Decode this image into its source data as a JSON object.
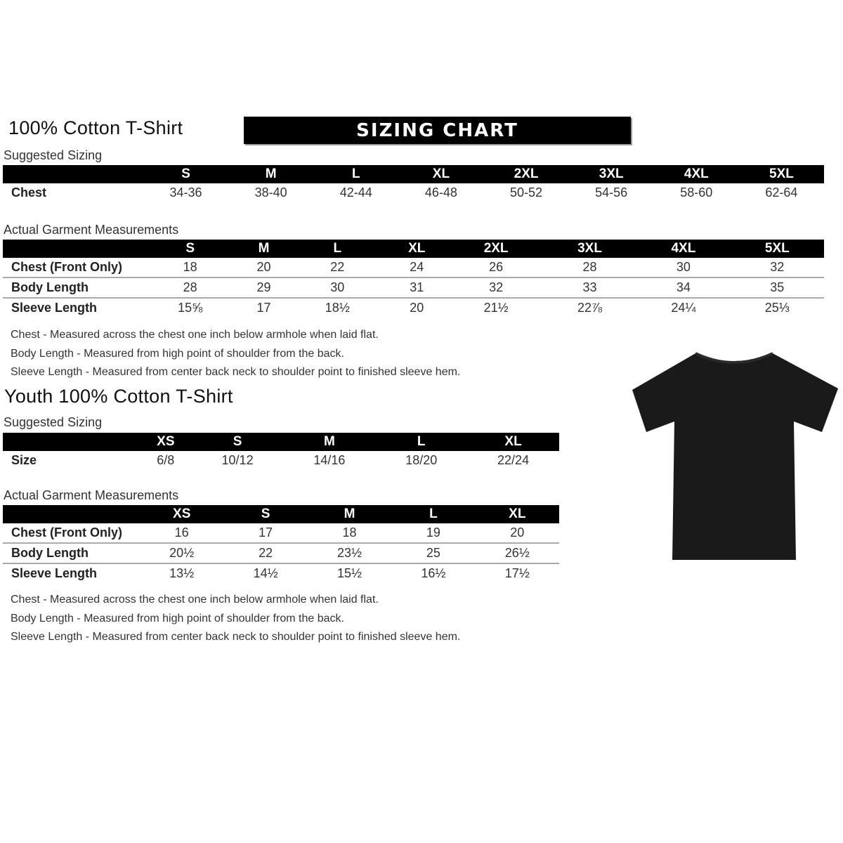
{
  "adult": {
    "title": "100% Cotton T-Shirt",
    "banner": "SIZING CHART",
    "suggested_label": "Suggested Sizing",
    "sizes": [
      "S",
      "M",
      "L",
      "XL",
      "2XL",
      "3XL",
      "4XL",
      "5XL"
    ],
    "suggested_rows": [
      {
        "label": "Chest",
        "values": [
          "34-36",
          "38-40",
          "42-44",
          "46-48",
          "50-52",
          "54-56",
          "58-60",
          "62-64"
        ]
      }
    ],
    "actual_label": "Actual Garment Measurements",
    "actual_rows": [
      {
        "label": "Chest (Front Only)",
        "values": [
          "18",
          "20",
          "22",
          "24",
          "26",
          "28",
          "30",
          "32"
        ]
      },
      {
        "label": "Body Length",
        "values": [
          "28",
          "29",
          "30",
          "31",
          "32",
          "33",
          "34",
          "35"
        ]
      },
      {
        "label": "Sleeve Length",
        "values": [
          "15⅝",
          "17",
          "18½",
          "20",
          "21½",
          "22⅞",
          "24¼",
          "25⅓"
        ]
      }
    ],
    "notes": [
      "Chest - Measured across the chest one inch below armhole when laid flat.",
      "Body Length - Measured from high point of shoulder from the back.",
      "Sleeve Length - Measured from center back neck to shoulder point to finished sleeve hem."
    ]
  },
  "youth": {
    "title": "Youth 100% Cotton T-Shirt",
    "suggested_label": "Suggested Sizing",
    "sizes": [
      "XS",
      "S",
      "M",
      "L",
      "XL"
    ],
    "suggested_rows": [
      {
        "label": "Size",
        "values": [
          "6/8",
          "10/12",
          "14/16",
          "18/20",
          "22/24"
        ]
      }
    ],
    "actual_label": "Actual Garment Measurements",
    "actual_rows": [
      {
        "label": "Chest (Front Only)",
        "values": [
          "16",
          "17",
          "18",
          "19",
          "20"
        ]
      },
      {
        "label": "Body Length",
        "values": [
          "20½",
          "22",
          "23½",
          "25",
          "26½"
        ]
      },
      {
        "label": "Sleeve Length",
        "values": [
          "13½",
          "14½",
          "15½",
          "16½",
          "17½"
        ]
      }
    ],
    "notes": [
      "Chest - Measured across the chest one inch below armhole when laid flat.",
      "Body Length - Measured from high point of shoulder from the back.",
      "Sleeve Length - Measured from center back neck to shoulder point to finished sleeve hem."
    ]
  },
  "image": {
    "icon": "black-tshirt-icon",
    "color": "#1a1a1a"
  }
}
